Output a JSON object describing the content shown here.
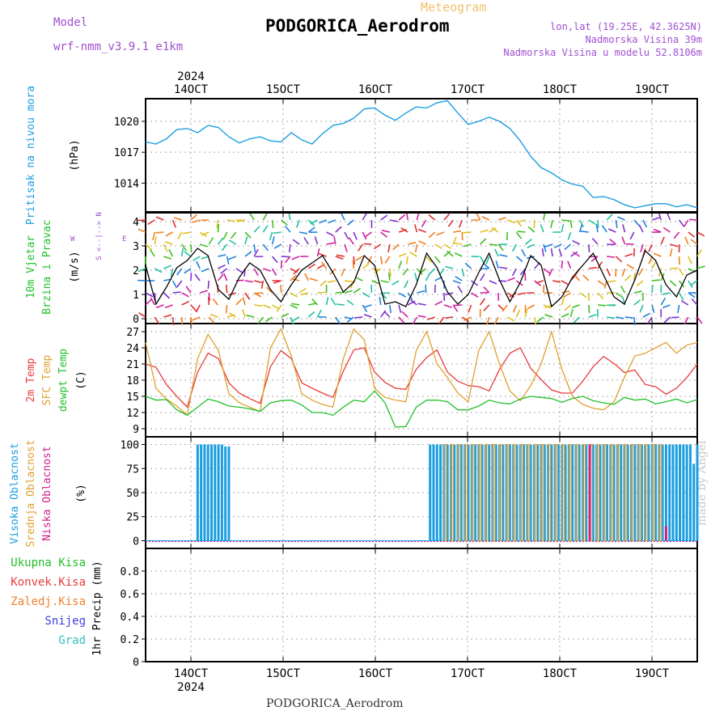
{
  "header": {
    "model_label": "Model",
    "model_name": "wrf-nmm_v3.9.1  e1km",
    "meteogram_label": "Meteogram",
    "station_title": "PODGORICA_Aerodrom",
    "lonlat": "lon,lat (19.25E, 42.3625N)",
    "elevation": "Nadmorska Visina 39m",
    "model_elevation": "Nadmorska Visina u modelu 52.8106m",
    "footer_station": "PODGORICA_Aerodrom",
    "watermark": "made by Angel"
  },
  "colors": {
    "pressure": "#1a9ee0",
    "temp2m": "#e83c3c",
    "sfc_temp": "#e0a030",
    "dewpt": "#22c02a",
    "high_cloud": "#1a9ee0",
    "mid_cloud": "#e0a030",
    "low_cloud": "#d0208a",
    "wind_speed": "#000000",
    "label_purple": "#a050d0",
    "label_orange": "#f0c070"
  },
  "chart_data": [
    {
      "type": "line",
      "panel": "pressure",
      "ylabel_title": "Pritisak na nivou mora",
      "ylabel_unit": "(hPa)",
      "x_ticks": [
        "14OCT",
        "15OCT",
        "16OCT",
        "17OCT",
        "18OCT",
        "19OCT"
      ],
      "top_axis_year": "2024",
      "bottom_axis_year": "2024",
      "yticks": [
        1014,
        1017,
        1020
      ],
      "ylim": [
        1011.2,
        1022.2
      ],
      "grid": true,
      "series": [
        {
          "color_key": "pressure",
          "x": [
            0,
            3,
            6,
            9,
            12,
            15,
            18,
            21,
            24,
            27,
            30,
            33,
            36,
            39,
            42,
            45,
            48,
            51,
            54,
            57,
            60,
            63,
            66,
            69,
            72,
            75,
            78,
            81,
            84,
            87,
            90,
            93,
            96,
            99,
            102,
            105,
            108,
            111,
            114,
            117,
            120,
            123,
            126,
            129,
            132,
            135,
            138,
            141,
            144,
            147,
            150,
            153,
            156,
            159
          ],
          "values": [
            1018.0,
            1017.8,
            1018.3,
            1019.2,
            1019.3,
            1018.9,
            1019.6,
            1019.4,
            1018.5,
            1017.9,
            1018.3,
            1018.5,
            1018.1,
            1018.0,
            1018.9,
            1018.2,
            1017.8,
            1018.8,
            1019.6,
            1019.8,
            1020.3,
            1021.2,
            1021.3,
            1020.6,
            1020.1,
            1020.8,
            1021.4,
            1021.3,
            1021.8,
            1022.0,
            1020.8,
            1019.7,
            1020.0,
            1020.4,
            1020.0,
            1019.3,
            1018.1,
            1016.6,
            1015.5,
            1015.0,
            1014.3,
            1013.9,
            1013.7,
            1012.6,
            1012.7,
            1012.4,
            1011.9,
            1011.6,
            1011.8,
            1012.0,
            1012.0,
            1011.7,
            1011.9,
            1011.6
          ]
        }
      ]
    },
    {
      "type": "line",
      "panel": "wind",
      "ylabel_title": "10m Vjetar",
      "ylabel_title2": "Brzina i Pravac",
      "ylabel_unit": "(m/s)",
      "compass_ns": "S  <--|-->  N",
      "compass_w": "W",
      "compass_e": "E",
      "yticks": [
        0,
        1,
        2,
        3,
        4
      ],
      "ylim": [
        -0.2,
        4.4
      ],
      "grid": true,
      "series": [
        {
          "name": "",
          "color_key": "wind_speed",
          "x": [
            0,
            3,
            6,
            9,
            12,
            15,
            18,
            21,
            24,
            27,
            30,
            33,
            36,
            39,
            42,
            45,
            48,
            51,
            54,
            57,
            60,
            63,
            66,
            69,
            72,
            75,
            78,
            81,
            84,
            87,
            90,
            93,
            96,
            99,
            102,
            105,
            108,
            111,
            114,
            117,
            120,
            123,
            126,
            129,
            132,
            135,
            138,
            141,
            144,
            147,
            150,
            153,
            156,
            159
          ],
          "values": [
            2.2,
            0.6,
            1.3,
            2.1,
            2.4,
            2.9,
            2.6,
            1.2,
            0.8,
            1.7,
            2.3,
            2.0,
            1.2,
            0.7,
            1.4,
            2.0,
            2.3,
            2.6,
            1.9,
            1.1,
            1.5,
            2.6,
            2.2,
            0.6,
            0.7,
            0.5,
            1.4,
            2.7,
            2.1,
            1.1,
            0.6,
            1.0,
            1.9,
            2.7,
            1.6,
            0.7,
            1.5,
            2.6,
            2.2,
            0.5,
            0.9,
            1.7,
            2.2,
            2.7,
            1.8,
            0.9,
            0.6,
            1.6,
            2.8,
            2.4,
            1.4,
            0.9,
            1.8,
            2.0
          ]
        }
      ]
    },
    {
      "type": "line",
      "panel": "temperature",
      "ylabel_lines": [
        "2m Temp",
        "SFC Temp",
        "dewpt Temp"
      ],
      "ylabel_unit": "(C)",
      "yticks": [
        9,
        12,
        15,
        18,
        21,
        24,
        27
      ],
      "ylim": [
        7.5,
        28.5
      ],
      "grid": true,
      "series": [
        {
          "name": "2m Temp",
          "color_key": "temp2m",
          "x": [
            0,
            3,
            6,
            9,
            12,
            15,
            18,
            21,
            24,
            27,
            30,
            33,
            36,
            39,
            42,
            45,
            48,
            51,
            54,
            57,
            60,
            63,
            66,
            69,
            72,
            75,
            78,
            81,
            84,
            87,
            90,
            93,
            96,
            99,
            102,
            105,
            108,
            111,
            114,
            117,
            120,
            123,
            126,
            129,
            132,
            135,
            138,
            141,
            144,
            147,
            150,
            153,
            156,
            159
          ],
          "values": [
            21.0,
            20.4,
            17.2,
            15.0,
            13.0,
            19.5,
            23.0,
            22.0,
            17.5,
            15.6,
            14.6,
            13.7,
            20.5,
            23.5,
            22.0,
            17.5,
            16.5,
            15.6,
            14.8,
            19.7,
            23.6,
            24.0,
            19.5,
            17.6,
            16.5,
            16.3,
            20.0,
            22.2,
            23.6,
            19.5,
            17.8,
            17.0,
            16.8,
            16.0,
            20.0,
            23.0,
            24.0,
            20.2,
            18.1,
            16.2,
            15.6,
            15.6,
            17.8,
            20.5,
            22.4,
            21.1,
            19.4,
            19.9,
            17.2,
            16.8,
            15.4,
            16.5,
            18.5,
            21.0
          ]
        },
        {
          "name": "SFC Temp",
          "color_key": "sfc_temp",
          "x": [
            0,
            3,
            6,
            9,
            12,
            15,
            18,
            21,
            24,
            27,
            30,
            33,
            36,
            39,
            42,
            45,
            48,
            51,
            54,
            57,
            60,
            63,
            66,
            69,
            72,
            75,
            78,
            81,
            84,
            87,
            90,
            93,
            96,
            99,
            102,
            105,
            108,
            111,
            114,
            117,
            120,
            123,
            126,
            129,
            132,
            135,
            138,
            141,
            144,
            147,
            150,
            153,
            156,
            159
          ],
          "values": [
            25.0,
            16.5,
            14.5,
            13.2,
            11.5,
            22.0,
            26.5,
            23.5,
            15.5,
            13.8,
            13.0,
            12.2,
            24.0,
            27.5,
            22.5,
            15.5,
            14.3,
            13.5,
            13.0,
            22.0,
            27.5,
            25.5,
            16.5,
            14.8,
            14.3,
            14.0,
            23.5,
            27.0,
            21.0,
            18.5,
            15.6,
            14.0,
            23.5,
            27.0,
            21.0,
            16.0,
            14.2,
            17.0,
            21.0,
            27.0,
            20.0,
            15.0,
            13.5,
            12.8,
            12.5,
            14.0,
            18.5,
            22.5,
            23.0,
            24.0,
            25.0,
            23.0,
            24.5,
            25.0
          ]
        },
        {
          "name": "dewpt Temp",
          "color_key": "dewpt",
          "x": [
            0,
            3,
            6,
            9,
            12,
            15,
            18,
            21,
            24,
            27,
            30,
            33,
            36,
            39,
            42,
            45,
            48,
            51,
            54,
            57,
            60,
            63,
            66,
            69,
            72,
            75,
            78,
            81,
            84,
            87,
            90,
            93,
            96,
            99,
            102,
            105,
            108,
            111,
            114,
            117,
            120,
            123,
            126,
            129,
            132,
            135,
            138,
            141,
            144,
            147,
            150,
            153,
            156,
            159
          ],
          "values": [
            15.0,
            14.3,
            14.4,
            12.5,
            11.5,
            13.0,
            14.5,
            14.0,
            13.2,
            13.0,
            12.7,
            12.2,
            13.8,
            14.2,
            14.3,
            13.4,
            12.0,
            12.0,
            11.5,
            13.0,
            14.3,
            14.0,
            16.0,
            13.8,
            9.3,
            9.4,
            13.0,
            14.3,
            14.3,
            14.0,
            12.5,
            12.5,
            13.2,
            14.3,
            13.8,
            13.6,
            14.5,
            15.0,
            14.8,
            14.6,
            13.9,
            14.6,
            15.0,
            14.2,
            13.8,
            13.5,
            14.8,
            14.3,
            14.5,
            13.6,
            14.0,
            14.5,
            13.8,
            14.4
          ]
        }
      ]
    },
    {
      "type": "bar",
      "panel": "clouds",
      "ylabel_lines": [
        "Visoka Oblacnost",
        "Srednja Oblacnost",
        "Niska Oblacnost"
      ],
      "ylabel_unit": "(%)",
      "yticks": [
        0,
        25,
        50,
        75,
        100
      ],
      "ylim": [
        -8,
        108
      ],
      "grid": true,
      "series": [
        {
          "name": "Visoka Oblacnost",
          "color_key": "high_cloud",
          "x": [
            15,
            16,
            17,
            18,
            19,
            20,
            21,
            22,
            23,
            24,
            82,
            83,
            84,
            85,
            86,
            87,
            88,
            89,
            90,
            91,
            92,
            93,
            94,
            95,
            96,
            97,
            98,
            99,
            100,
            101,
            102,
            103,
            104,
            105,
            106,
            107,
            108,
            109,
            110,
            111,
            112,
            113,
            114,
            115,
            116,
            117,
            118,
            119,
            120,
            121,
            122,
            123,
            124,
            125,
            126,
            127,
            128,
            129,
            130,
            131,
            132,
            133,
            134,
            135,
            136,
            137,
            138,
            139,
            140,
            141,
            142,
            143,
            144,
            145,
            146,
            147,
            148,
            149,
            150,
            151,
            152,
            153,
            154,
            155,
            156,
            157,
            158,
            159
          ],
          "values": [
            100,
            100,
            100,
            100,
            100,
            100,
            100,
            100,
            98,
            98,
            100,
            100,
            100,
            100,
            100,
            100,
            100,
            100,
            100,
            100,
            100,
            100,
            100,
            100,
            100,
            100,
            100,
            100,
            100,
            100,
            100,
            100,
            100,
            100,
            100,
            100,
            100,
            100,
            100,
            100,
            100,
            100,
            100,
            100,
            100,
            100,
            100,
            100,
            100,
            100,
            100,
            100,
            100,
            100,
            100,
            100,
            100,
            100,
            100,
            100,
            100,
            100,
            100,
            100,
            100,
            100,
            100,
            100,
            100,
            100,
            100,
            100,
            100,
            100,
            100,
            100,
            100,
            100,
            100,
            100,
            100,
            100,
            100,
            100,
            100,
            100,
            80,
            100
          ]
        },
        {
          "name": "Srednja Oblacnost",
          "color_key": "mid_cloud",
          "x": [
            86,
            88,
            90,
            92,
            94,
            96,
            98,
            100,
            102,
            104,
            106,
            108,
            110,
            112,
            114,
            116,
            118,
            120,
            122,
            124,
            126,
            128,
            130,
            132,
            134,
            136,
            138,
            140,
            142,
            144,
            146,
            148
          ],
          "values": [
            100,
            100,
            100,
            100,
            100,
            100,
            100,
            100,
            100,
            100,
            100,
            100,
            100,
            100,
            100,
            100,
            100,
            100,
            100,
            100,
            100,
            100,
            100,
            100,
            100,
            100,
            100,
            100,
            100,
            100,
            100,
            100
          ]
        },
        {
          "name": "Niska Oblacnost",
          "color_key": "low_cloud",
          "x": [
            128,
            150
          ],
          "values": [
            100,
            15
          ]
        }
      ]
    },
    {
      "type": "bar",
      "panel": "precip",
      "ylabel_unit": "1hr Precip (mm)",
      "legend": [
        "Ukupna Kisa",
        "Konvek.Kisa",
        "Zaledj.Kisa",
        "Snijeg",
        "Grad"
      ],
      "legend_colors": [
        "#22c02a",
        "#e83c3c",
        "#f08030",
        "#4040e0",
        "#30c0c0"
      ],
      "yticks": [
        0,
        0.2,
        0.4,
        0.6,
        0.8
      ],
      "ylim": [
        0,
        1.0
      ],
      "grid": true,
      "series": []
    }
  ]
}
